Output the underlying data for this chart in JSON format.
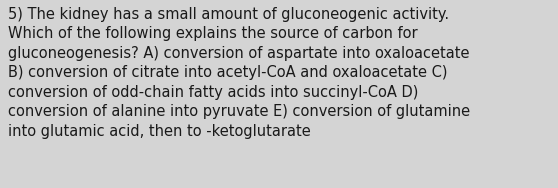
{
  "text": "5) The kidney has a small amount of gluconeogenic activity.\nWhich of the following explains the source of carbon for\ngluconeogenesis? A) conversion of aspartate into oxaloacetate\nB) conversion of citrate into acetyl-CoA and oxaloacetate C)\nconversion of odd-chain fatty acids into succinyl-CoA D)\nconversion of alanine into pyruvate E) conversion of glutamine\ninto glutamic acid, then to -ketoglutarate",
  "background_color": "#d4d4d4",
  "text_color": "#1a1a1a",
  "font_size": 10.5,
  "font_family": "DejaVu Sans",
  "fig_width": 5.58,
  "fig_height": 1.88,
  "dpi": 100
}
